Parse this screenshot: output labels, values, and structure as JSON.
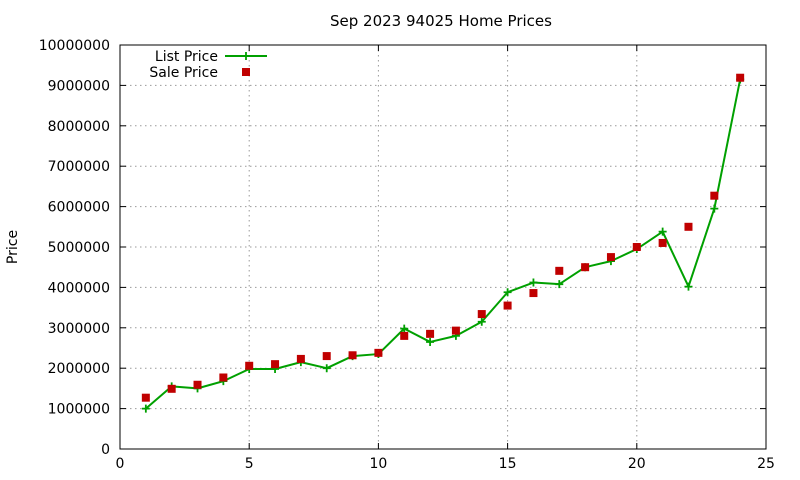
{
  "chart_data": {
    "type": "line",
    "title": "Sep 2023 94025 Home Prices",
    "xlabel": "",
    "ylabel": "Price",
    "xlim": [
      0,
      25
    ],
    "ylim": [
      0,
      10000000
    ],
    "xticks": [
      0,
      5,
      10,
      15,
      20,
      25
    ],
    "yticks": [
      0,
      1000000,
      2000000,
      3000000,
      4000000,
      5000000,
      6000000,
      7000000,
      8000000,
      9000000,
      10000000
    ],
    "grid": true,
    "legend_position": "top-left",
    "series": [
      {
        "name": "List Price",
        "style": "linespoints",
        "marker": "plus",
        "color": "#00a000",
        "x": [
          1,
          2,
          3,
          4,
          5,
          6,
          7,
          8,
          9,
          10,
          11,
          12,
          13,
          14,
          15,
          16,
          17,
          18,
          19,
          20,
          21,
          22,
          23,
          24
        ],
        "values": [
          1000000,
          1550000,
          1500000,
          1680000,
          1980000,
          1980000,
          2150000,
          2000000,
          2300000,
          2350000,
          2980000,
          2650000,
          2800000,
          3150000,
          3880000,
          4120000,
          4080000,
          4500000,
          4650000,
          4950000,
          5380000,
          4020000,
          5950000,
          9150000
        ]
      },
      {
        "name": "Sale Price",
        "style": "points",
        "marker": "square",
        "color": "#c00000",
        "x": [
          1,
          2,
          3,
          4,
          5,
          6,
          7,
          8,
          9,
          10,
          11,
          12,
          13,
          14,
          15,
          16,
          17,
          18,
          19,
          20,
          21,
          22,
          23,
          24
        ],
        "values": [
          1270000,
          1490000,
          1590000,
          1770000,
          2060000,
          2100000,
          2230000,
          2300000,
          2320000,
          2380000,
          2800000,
          2850000,
          2930000,
          3340000,
          3550000,
          3860000,
          4410000,
          4500000,
          4750000,
          5000000,
          5100000,
          5500000,
          6270000,
          9190000
        ]
      }
    ]
  }
}
